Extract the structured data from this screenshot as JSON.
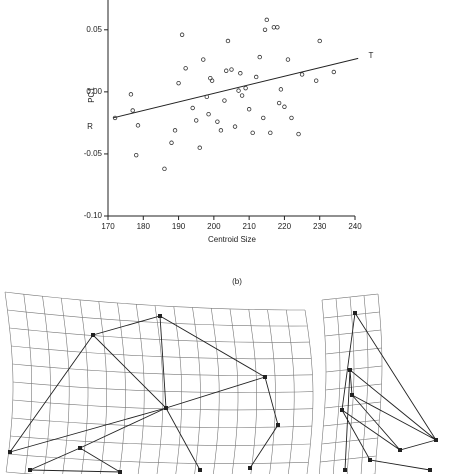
{
  "chart_data": {
    "type": "scatter",
    "xlabel": "Centroid Size",
    "ylabel": "PC1",
    "annotations": [
      "R",
      "T"
    ],
    "panel_label": "(b)",
    "x": [
      172,
      176.5,
      177,
      178.5,
      178,
      186,
      188,
      189,
      190,
      191,
      192,
      194,
      195,
      196,
      197,
      198,
      198.5,
      199,
      199.5,
      201,
      202,
      203,
      203.5,
      204,
      205,
      206,
      207,
      207.5,
      208,
      209,
      210,
      211,
      212,
      213,
      214,
      214.5,
      215,
      216,
      217,
      218,
      218.5,
      219,
      220,
      221,
      222,
      224,
      225,
      229,
      230,
      234
    ],
    "values": [
      -0.021,
      -0.002,
      -0.015,
      -0.027,
      -0.051,
      -0.062,
      -0.041,
      -0.031,
      0.007,
      0.046,
      0.019,
      -0.013,
      -0.023,
      -0.045,
      0.026,
      -0.004,
      -0.018,
      0.011,
      0.009,
      -0.024,
      -0.031,
      -0.007,
      0.017,
      0.041,
      0.018,
      -0.028,
      0.001,
      0.015,
      -0.003,
      0.003,
      -0.014,
      -0.033,
      0.012,
      0.028,
      -0.021,
      0.05,
      0.058,
      -0.033,
      0.052,
      0.052,
      -0.009,
      0.002,
      -0.012,
      0.026,
      -0.021,
      -0.034,
      0.014,
      0.009,
      0.041,
      0.016
    ],
    "fit": {
      "x": [
        171.4,
        240.9
      ],
      "y": [
        -0.021,
        0.027
      ]
    },
    "xlim": [
      170,
      240
    ],
    "xticks": [
      170,
      180,
      190,
      200,
      210,
      220,
      230,
      240
    ],
    "ylim": [
      -0.1,
      0.074
    ],
    "yticks": [
      {
        "value": -0.1,
        "label": "-0.10"
      },
      -0.05,
      {
        "value": 0,
        "label": "0.00"
      },
      0.05
    ],
    "color": "#333333"
  }
}
